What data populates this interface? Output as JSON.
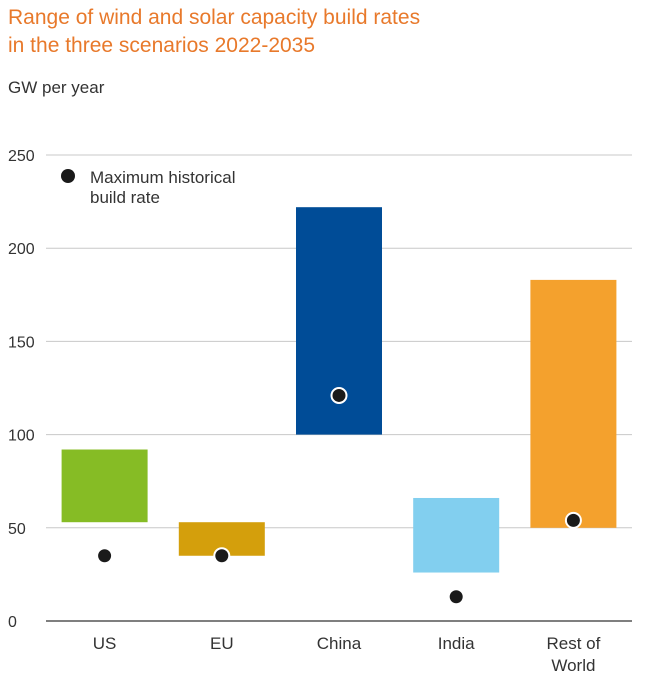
{
  "title_line1": "Range of wind and solar capacity build rates",
  "title_line2": "in the three scenarios 2022-2035",
  "unit_label": "GW per year",
  "chart_data": {
    "type": "floating-bar",
    "title": "Range of wind and solar capacity build rates in the three scenarios 2022-2035",
    "ylabel": "GW per year",
    "ylim": [
      0,
      250
    ],
    "yticks": [
      0,
      50,
      100,
      150,
      200,
      250
    ],
    "grid": true,
    "legend": {
      "position": "top-left",
      "label_lines": [
        "Maximum historical",
        "build rate"
      ]
    },
    "categories": [
      {
        "label_lines": [
          "US"
        ],
        "low": 53,
        "high": 92,
        "historical_max": 35,
        "color": "#86bc25"
      },
      {
        "label_lines": [
          "EU"
        ],
        "low": 35,
        "high": 53,
        "historical_max": 35,
        "color": "#d49f0c"
      },
      {
        "label_lines": [
          "China"
        ],
        "low": 100,
        "high": 222,
        "historical_max": 121,
        "color": "#004c97"
      },
      {
        "label_lines": [
          "India"
        ],
        "low": 26,
        "high": 66,
        "historical_max": 13,
        "color": "#82cfef"
      },
      {
        "label_lines": [
          "Rest of",
          "World"
        ],
        "low": 50,
        "high": 183,
        "historical_max": 54,
        "color": "#f4a12d"
      }
    ]
  }
}
